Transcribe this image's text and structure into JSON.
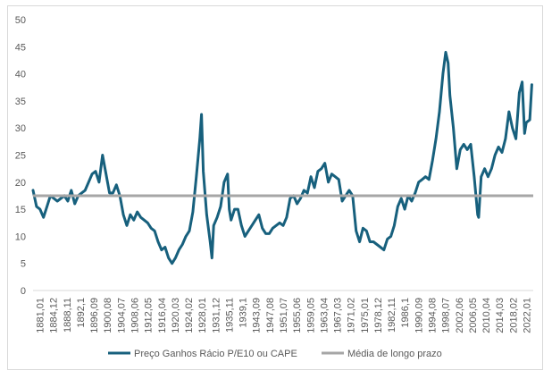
{
  "chart_data": {
    "type": "line",
    "title": "",
    "xlabel": "",
    "ylabel": "",
    "ylim": [
      0,
      50
    ],
    "y_ticks": [
      0,
      5,
      10,
      15,
      20,
      25,
      30,
      35,
      40,
      45,
      50
    ],
    "grid": false,
    "legend_position": "bottom",
    "x_tick_labels": [
      "1881,01",
      "1884,12",
      "1888,11",
      "1892,1",
      "1896,09",
      "1900,08",
      "1904,07",
      "1908,06",
      "1912,05",
      "1916,04",
      "1920,03",
      "1924,02",
      "1928,01",
      "1931,12",
      "1935,11",
      "1939,1",
      "1943,09",
      "1947,08",
      "1951,07",
      "1955,06",
      "1959,05",
      "1963,04",
      "1967,03",
      "1971,02",
      "1975,01",
      "1978,12",
      "1982,11",
      "1986,1",
      "1990,09",
      "1994,08",
      "1998,07",
      "2002,06",
      "2006,05",
      "2010,04",
      "2014,03",
      "2018,02",
      "2022,01"
    ],
    "x_range": [
      1881.0,
      2025.0
    ],
    "series": [
      {
        "name": "Preço Ganhos Rácio P/E10 ou CAPE",
        "color": "#17607d",
        "x": [
          1881.0,
          1882.0,
          1883.0,
          1884.0,
          1885.0,
          1886.0,
          1887.0,
          1888.0,
          1889.0,
          1890.0,
          1891.0,
          1892.0,
          1893.0,
          1894.0,
          1895.0,
          1896.0,
          1897.0,
          1898.0,
          1899.0,
          1900.0,
          1901.0,
          1902.0,
          1903.0,
          1904.0,
          1905.0,
          1906.0,
          1907.0,
          1908.0,
          1909.0,
          1910.0,
          1911.0,
          1912.0,
          1913.0,
          1914.0,
          1915.0,
          1916.0,
          1917.0,
          1918.0,
          1919.0,
          1920.0,
          1921.0,
          1922.0,
          1923.0,
          1924.0,
          1925.0,
          1926.0,
          1927.0,
          1928.0,
          1929.0,
          1929.5,
          1930.0,
          1931.0,
          1932.0,
          1932.5,
          1933.0,
          1934.0,
          1935.0,
          1936.0,
          1937.0,
          1937.5,
          1938.0,
          1939.0,
          1940.0,
          1941.0,
          1942.0,
          1943.0,
          1944.0,
          1945.0,
          1946.0,
          1947.0,
          1948.0,
          1949.0,
          1950.0,
          1951.0,
          1952.0,
          1953.0,
          1954.0,
          1955.0,
          1956.0,
          1957.0,
          1958.0,
          1959.0,
          1960.0,
          1961.0,
          1962.0,
          1963.0,
          1964.0,
          1965.0,
          1966.0,
          1967.0,
          1968.0,
          1969.0,
          1970.0,
          1971.0,
          1972.0,
          1973.0,
          1974.0,
          1975.0,
          1976.0,
          1977.0,
          1978.0,
          1979.0,
          1980.0,
          1981.0,
          1982.0,
          1983.0,
          1984.0,
          1985.0,
          1986.0,
          1987.0,
          1988.0,
          1989.0,
          1990.0,
          1991.0,
          1992.0,
          1993.0,
          1994.0,
          1995.0,
          1996.0,
          1997.0,
          1998.0,
          1999.0,
          1999.8,
          2000.5,
          2001.0,
          2002.0,
          2003.0,
          2004.0,
          2005.0,
          2006.0,
          2007.0,
          2008.0,
          2009.0,
          2009.3,
          2010.0,
          2011.0,
          2012.0,
          2013.0,
          2014.0,
          2015.0,
          2016.0,
          2017.0,
          2018.0,
          2019.0,
          2020.0,
          2021.0,
          2021.8,
          2022.5,
          2023.0,
          2024.0,
          2024.6
        ],
        "y": [
          18.5,
          15.5,
          15.0,
          13.5,
          15.5,
          17.5,
          17.0,
          16.5,
          17.0,
          17.5,
          16.5,
          18.5,
          16.0,
          17.5,
          18.0,
          18.5,
          20.0,
          21.5,
          22.0,
          20.0,
          25.0,
          21.5,
          18.0,
          18.0,
          19.5,
          17.5,
          14.0,
          12.0,
          14.0,
          13.0,
          14.5,
          13.5,
          13.0,
          12.5,
          11.5,
          11.0,
          9.0,
          7.5,
          8.0,
          6.0,
          5.0,
          6.0,
          7.5,
          8.5,
          10.0,
          11.0,
          14.5,
          21.0,
          28.0,
          32.5,
          22.0,
          14.0,
          9.0,
          6.0,
          12.0,
          13.5,
          15.5,
          20.0,
          21.5,
          15.0,
          13.0,
          15.0,
          15.0,
          12.0,
          10.0,
          11.0,
          12.0,
          13.0,
          14.0,
          11.5,
          10.5,
          10.5,
          11.5,
          12.0,
          12.5,
          12.0,
          13.5,
          17.0,
          17.5,
          16.0,
          17.0,
          18.5,
          18.0,
          21.0,
          19.0,
          22.0,
          22.5,
          23.5,
          20.0,
          21.5,
          21.0,
          20.5,
          16.5,
          17.5,
          18.5,
          17.5,
          11.0,
          9.0,
          11.5,
          11.0,
          9.0,
          9.0,
          8.5,
          8.0,
          7.5,
          9.5,
          10.0,
          12.0,
          15.5,
          17.0,
          15.0,
          17.5,
          16.5,
          18.0,
          20.0,
          20.5,
          21.0,
          20.5,
          24.0,
          28.0,
          33.0,
          40.0,
          44.0,
          42.0,
          36.0,
          30.0,
          22.5,
          26.0,
          27.0,
          26.0,
          27.0,
          21.0,
          14.0,
          13.5,
          21.0,
          22.5,
          21.0,
          22.5,
          25.0,
          26.5,
          25.5,
          28.0,
          33.0,
          30.0,
          28.0,
          36.5,
          38.5,
          29.0,
          31.0,
          31.5,
          38.0
        ]
      },
      {
        "name": "Média de longo prazo",
        "color": "#a6a6a6",
        "value": 17.5
      }
    ]
  }
}
